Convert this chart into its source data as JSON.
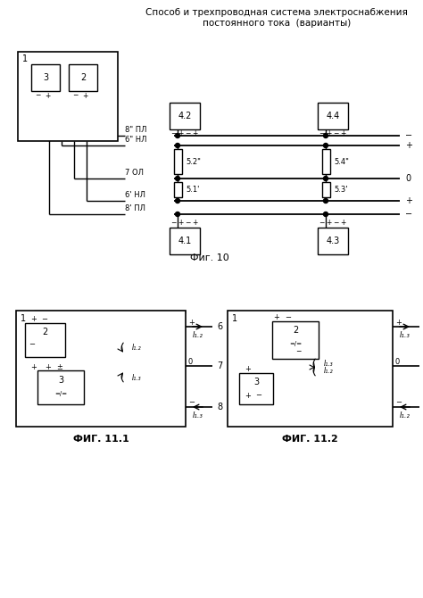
{
  "title1": "Способ и трехпроводная система электроснабжения",
  "title2": "постоянного тока  (варианты)",
  "fig10": "Фиг. 10",
  "fig111": "ФИГ. 11.1",
  "fig112": "ФИГ. 11.2",
  "bg": "#ffffff",
  "lc": "#000000"
}
